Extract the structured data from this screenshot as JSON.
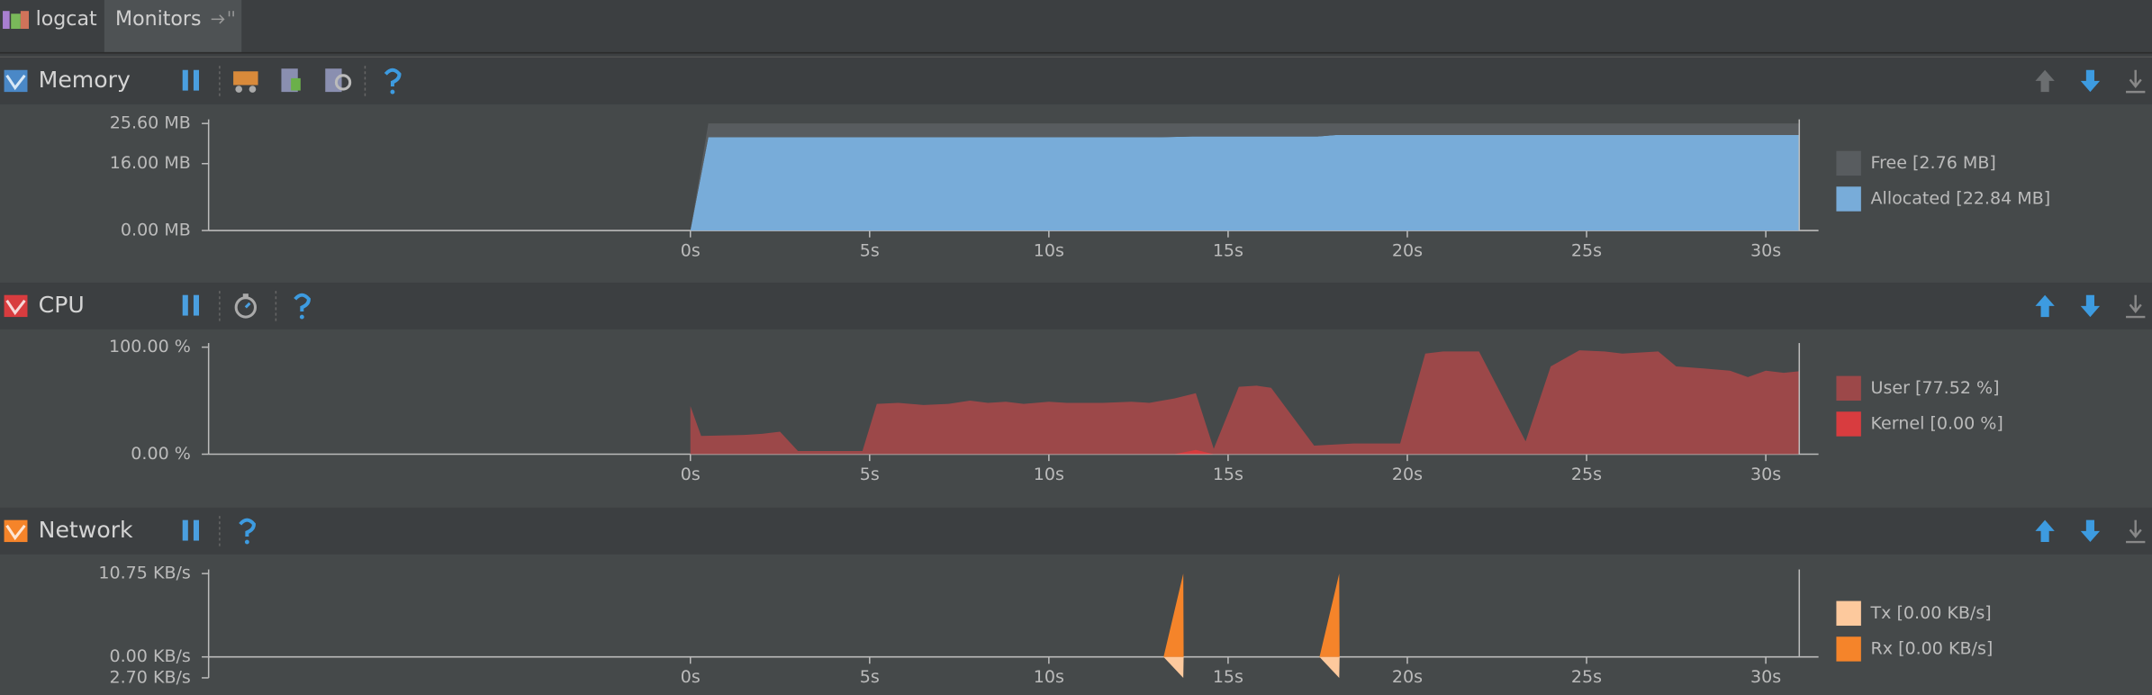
{
  "tabs": [
    "logcat",
    "Monitors"
  ],
  "monitors": [
    {
      "title": "Memory",
      "chart_data": {
        "type": "area",
        "stacked": true,
        "xlim": [
          -13.44,
          31.47
        ],
        "xticks": [
          {
            "value": 0,
            "label": "0s"
          },
          {
            "value": 5,
            "label": "5s"
          },
          {
            "value": 10,
            "label": "10s"
          },
          {
            "value": 15,
            "label": "15s"
          },
          {
            "value": 20,
            "label": "20s"
          },
          {
            "value": 25,
            "label": "25s"
          },
          {
            "value": 30,
            "label": "30s"
          }
        ],
        "ylim": [
          0,
          25.6
        ],
        "yticks": [
          {
            "value": 0,
            "label": "0.00 MB"
          },
          {
            "value": 16,
            "label": "16.00 MB"
          },
          {
            "value": 25.6,
            "label": "25.60 MB"
          }
        ],
        "x": [
          0,
          0.5,
          13,
          14,
          17.5,
          18,
          30.93
        ],
        "series": [
          {
            "name": "Allocated [22.84 MB]",
            "color": "#78acd9",
            "values": [
              0,
              22.3,
              22.3,
              22.5,
              22.5,
              22.84,
              22.84
            ]
          },
          {
            "name": "Free [2.76 MB]",
            "color": "#585c5f",
            "values": [
              0,
              3.3,
              3.3,
              3.1,
              3.1,
              2.76,
              2.76
            ]
          }
        ],
        "legend_order": [
          "Free [2.76 MB]",
          "Allocated [22.84 MB]"
        ]
      }
    },
    {
      "title": "CPU",
      "chart_data": {
        "type": "area",
        "stacked": false,
        "xlim": [
          -13.44,
          31.47
        ],
        "xticks": [
          {
            "value": 0,
            "label": "0s"
          },
          {
            "value": 5,
            "label": "5s"
          },
          {
            "value": 10,
            "label": "10s"
          },
          {
            "value": 15,
            "label": "15s"
          },
          {
            "value": 20,
            "label": "20s"
          },
          {
            "value": 25,
            "label": "25s"
          },
          {
            "value": 30,
            "label": "30s"
          }
        ],
        "ylim": [
          0,
          100
        ],
        "yticks": [
          {
            "value": 0,
            "label": "0.00 %"
          },
          {
            "value": 100,
            "label": "100.00 %"
          }
        ],
        "x": [
          0,
          0.3,
          1.5,
          2.0,
          2.5,
          3.0,
          4.0,
          4.8,
          5.2,
          5.8,
          6.5,
          7.2,
          7.8,
          8.3,
          8.8,
          9.3,
          10,
          10.5,
          11.5,
          12.3,
          12.8,
          13.5,
          14.1,
          14.6,
          15.3,
          15.8,
          16.2,
          17.4,
          18.5,
          19.8,
          20.5,
          21.0,
          22.0,
          23.3,
          24.0,
          24.8,
          25.5,
          26.0,
          27.0,
          27.5,
          28.3,
          29.0,
          29.5,
          30.0,
          30.5,
          30.93
        ],
        "series": [
          {
            "name": "User [77.52 %]",
            "color": "#9c4849",
            "values": [
              45,
              17,
              18,
              19,
              21,
              3,
              3,
              3,
              47,
              48,
              46,
              47,
              50,
              48,
              49,
              47,
              49,
              48,
              48,
              49,
              48,
              52,
              57,
              5,
              63,
              64,
              62,
              8,
              10,
              10,
              94,
              96,
              96,
              12,
              82,
              97,
              96,
              94,
              96,
              82,
              80,
              78,
              72,
              78,
              76,
              77.52
            ]
          },
          {
            "name": "Kernel [0.00 %]",
            "color": "#d83c3f",
            "values": [
              0,
              0,
              0,
              0,
              0,
              0,
              0,
              0,
              0,
              0,
              0,
              0,
              0,
              0,
              0,
              0,
              0,
              0,
              0,
              0,
              0,
              0,
              4,
              0,
              0,
              0,
              0,
              0,
              0,
              0,
              0,
              0,
              0,
              0,
              0,
              0,
              0,
              0,
              0,
              0,
              0,
              0,
              0,
              0,
              0,
              0
            ]
          }
        ],
        "legend_order": [
          "User [77.52 %]",
          "Kernel [0.00 %]"
        ]
      }
    },
    {
      "title": "Network",
      "chart_data": {
        "type": "area",
        "stacked": false,
        "xlim": [
          -13.44,
          31.47
        ],
        "xticks": [
          {
            "value": 0,
            "label": "0s"
          },
          {
            "value": 5,
            "label": "5s"
          },
          {
            "value": 10,
            "label": "10s"
          },
          {
            "value": 15,
            "label": "15s"
          },
          {
            "value": 20,
            "label": "20s"
          },
          {
            "value": 25,
            "label": "25s"
          },
          {
            "value": 30,
            "label": "30s"
          }
        ],
        "ylim": [
          -2.7,
          10.75
        ],
        "yticks": [
          {
            "value": -2.7,
            "label": "2.70 KB/s"
          },
          {
            "value": 0,
            "label": "0.00 KB/s"
          },
          {
            "value": 10.75,
            "label": "10.75 KB/s"
          }
        ],
        "x": [
          13.2,
          13.75,
          13.76,
          17.55,
          18.1,
          18.11
        ],
        "series": [
          {
            "name": "Tx [0.00 KB/s]",
            "color": "#fdc99d",
            "values": [
              0,
              -2.7,
              0,
              0,
              -2.7,
              0
            ]
          },
          {
            "name": "Rx [0.00 KB/s]",
            "color": "#f5842a",
            "values": [
              0,
              10.75,
              0,
              0,
              10.75,
              0
            ]
          }
        ],
        "legend_order": [
          "Tx [0.00 KB/s]",
          "Rx [0.00 KB/s]"
        ]
      }
    }
  ]
}
